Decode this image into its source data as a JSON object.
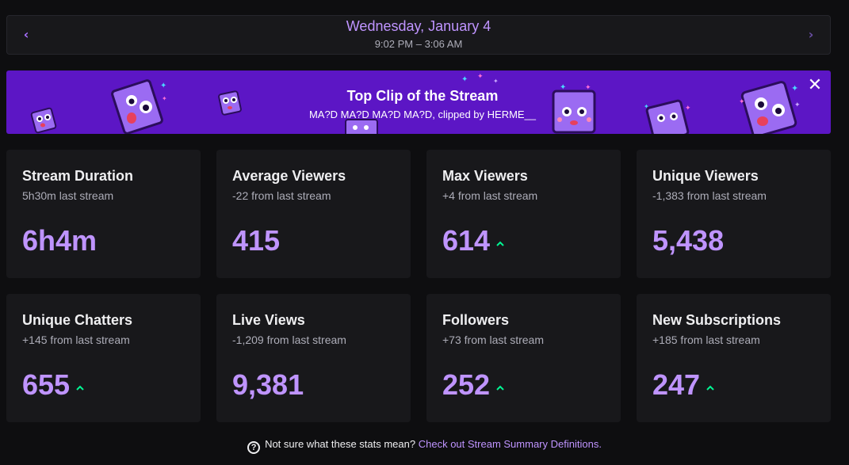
{
  "date_nav": {
    "title": "Wednesday, January 4",
    "range": "9:02 PM – 3:06 AM",
    "prev_icon": "‹",
    "next_icon": "›"
  },
  "banner": {
    "title": "Top Clip of the Stream",
    "subtitle": "MA?D MA?D MA?D MA?D, clipped by HERME__",
    "close_icon": "✕"
  },
  "cards": [
    {
      "title": "Stream Duration",
      "sub": "5h30m last stream",
      "value": "6h4m",
      "trend": ""
    },
    {
      "title": "Average Viewers",
      "sub": "-22 from last stream",
      "value": "415",
      "trend": ""
    },
    {
      "title": "Max Viewers",
      "sub": "+4 from last stream",
      "value": "614",
      "trend": "up"
    },
    {
      "title": "Unique Viewers",
      "sub": "-1,383 from last stream",
      "value": "5,438",
      "trend": ""
    },
    {
      "title": "Unique Chatters",
      "sub": "+145 from last stream",
      "value": "655",
      "trend": "up"
    },
    {
      "title": "Live Views",
      "sub": "-1,209 from last stream",
      "value": "9,381",
      "trend": ""
    },
    {
      "title": "Followers",
      "sub": "+73 from last stream",
      "value": "252",
      "trend": "up"
    },
    {
      "title": "New Subscriptions",
      "sub": "+185 from last stream",
      "value": "247",
      "trend": "up"
    }
  ],
  "footer": {
    "text": "Not sure what these stats mean?",
    "link": "Check out Stream Summary Definitions."
  },
  "colors": {
    "accent": "#bf94ff",
    "banner": "#5c16c5",
    "trend_up": "#00f593",
    "card_bg": "#18181b"
  }
}
